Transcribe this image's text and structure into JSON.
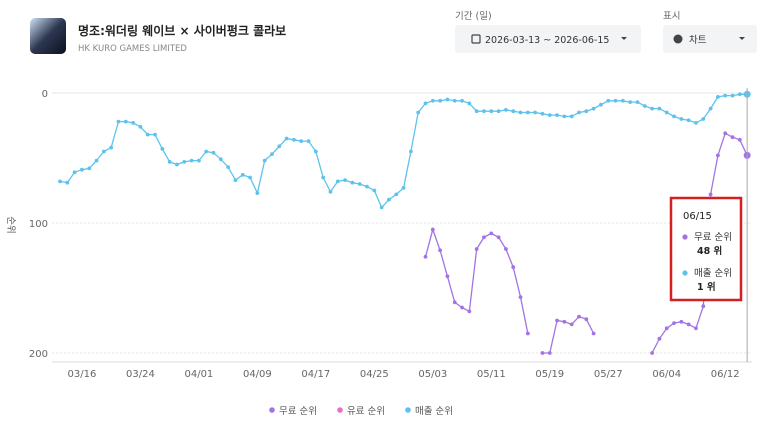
{
  "header": {
    "app_title": "명조:워더링 웨이브 × 사이버펑크 콜라보",
    "publisher": "HK KURO GAMES LIMITED",
    "period_label": "기간 (일)",
    "period_value": "2026-03-13  ~  2026-06-15",
    "display_label": "표시",
    "display_value": "차트"
  },
  "chart_data": {
    "type": "line",
    "y_label": "순위",
    "y_reversed": true,
    "categories": [
      null,
      null,
      null,
      "03/16",
      null,
      null,
      null,
      null,
      null,
      null,
      null,
      "03/24",
      null,
      null,
      null,
      null,
      null,
      null,
      null,
      "04/01",
      null,
      null,
      null,
      null,
      null,
      null,
      null,
      "04/09",
      null,
      null,
      null,
      null,
      null,
      null,
      null,
      "04/17",
      null,
      null,
      null,
      null,
      null,
      null,
      null,
      "04/25",
      null,
      null,
      null,
      null,
      null,
      null,
      null,
      "05/03",
      null,
      null,
      null,
      null,
      null,
      null,
      null,
      "05/11",
      null,
      null,
      null,
      null,
      null,
      null,
      null,
      "05/19",
      null,
      null,
      null,
      null,
      null,
      null,
      null,
      "05/27",
      null,
      null,
      null,
      null,
      null,
      null,
      null,
      "06/04",
      null,
      null,
      null,
      null,
      null,
      null,
      null,
      "06/12",
      null,
      null,
      null
    ],
    "series": [
      {
        "name": "무료 순위",
        "color": "#a373e3",
        "values": [
          null,
          null,
          null,
          null,
          null,
          null,
          null,
          null,
          null,
          null,
          null,
          null,
          null,
          null,
          null,
          null,
          null,
          null,
          null,
          null,
          null,
          null,
          null,
          null,
          null,
          null,
          null,
          null,
          null,
          null,
          null,
          null,
          null,
          null,
          null,
          null,
          null,
          null,
          null,
          null,
          null,
          null,
          null,
          null,
          null,
          null,
          null,
          null,
          null,
          null,
          126,
          105,
          121,
          141,
          161,
          165,
          168,
          120,
          111,
          108,
          111,
          120,
          134,
          157,
          185,
          null,
          200,
          200,
          175,
          176,
          178,
          172,
          174,
          185,
          null,
          null,
          null,
          null,
          null,
          null,
          null,
          200,
          189,
          181,
          177,
          176,
          178,
          181,
          164,
          78,
          48,
          31,
          34,
          36,
          48
        ]
      },
      {
        "name": "유료 순위",
        "color": "#ea6fc8",
        "values": [
          null,
          null,
          null,
          null,
          null,
          null,
          null,
          null,
          null,
          null,
          null,
          null,
          null,
          null,
          null,
          null,
          null,
          null,
          null,
          null,
          null,
          null,
          null,
          null,
          null,
          null,
          null,
          null,
          null,
          null,
          null,
          null,
          null,
          null,
          null,
          null,
          null,
          null,
          null,
          null,
          null,
          null,
          null,
          null,
          null,
          null,
          null,
          null,
          null,
          null,
          null,
          null,
          null,
          null,
          null,
          null,
          null,
          null,
          null,
          null,
          null,
          null,
          null,
          null,
          null,
          null,
          null,
          null,
          null,
          null,
          null,
          null,
          null,
          null,
          null,
          null,
          null,
          null,
          null,
          null,
          null,
          null,
          null,
          null,
          null,
          null,
          null,
          null,
          null,
          null,
          null,
          null,
          null,
          null,
          null
        ]
      },
      {
        "name": "매출 순위",
        "color": "#5ec3ec",
        "values": [
          68,
          69,
          61,
          59,
          58,
          52,
          45,
          42,
          22,
          22,
          23,
          26,
          32,
          32,
          43,
          53,
          55,
          53,
          52,
          52,
          45,
          46,
          51,
          57,
          67,
          63,
          65,
          77,
          52,
          47,
          41,
          35,
          36,
          37,
          37,
          45,
          65,
          76,
          68,
          67,
          69,
          70,
          72,
          75,
          88,
          82,
          78,
          73,
          45,
          15,
          8,
          6,
          6,
          5,
          6,
          6,
          8,
          14,
          14,
          14,
          14,
          13,
          14,
          15,
          15,
          15,
          16,
          17,
          17,
          18,
          18,
          15,
          14,
          12,
          9,
          6,
          6,
          6,
          7,
          7,
          10,
          12,
          12,
          15,
          18,
          20,
          21,
          23,
          20,
          12,
          3,
          2,
          2,
          1,
          1
        ]
      }
    ],
    "ylim": [
      0,
      200
    ],
    "yticks": [
      0,
      100,
      200
    ],
    "grid": true,
    "tooltip": {
      "date": "06/15",
      "items": [
        {
          "name": "무료 순위",
          "label": "48 위"
        },
        {
          "name": "매출 순위",
          "label": "1 위"
        }
      ]
    }
  }
}
